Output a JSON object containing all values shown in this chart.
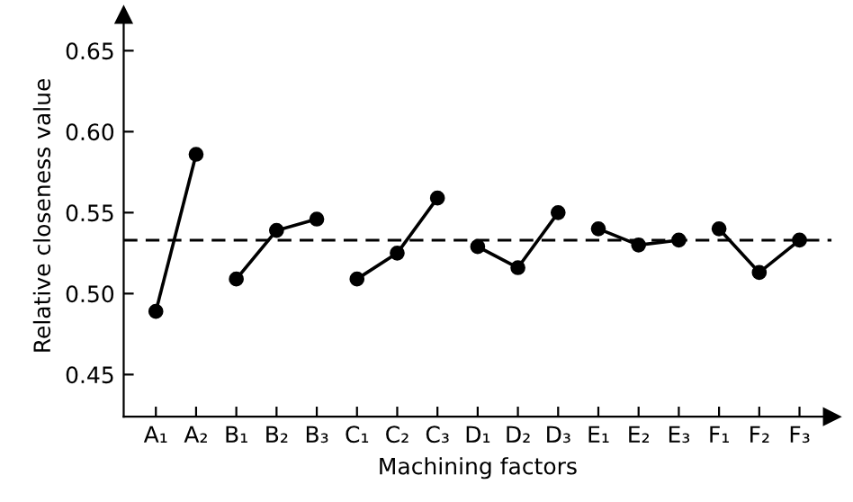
{
  "chart_data": {
    "type": "line",
    "xlabel": "Machining factors",
    "ylabel": "Relative closeness value",
    "categories": [
      "A₁",
      "A₂",
      "B₁",
      "B₂",
      "B₃",
      "C₁",
      "C₂",
      "C₃",
      "D₁",
      "D₂",
      "D₃",
      "E₁",
      "E₂",
      "E₃",
      "F₁",
      "F₂",
      "F₃"
    ],
    "series": [
      {
        "color": "#000000",
        "values": [
          0.489,
          0.586,
          null,
          null,
          null,
          null,
          null,
          null,
          null,
          null,
          null,
          null,
          null,
          null,
          null,
          null,
          null
        ]
      },
      {
        "color": "#000000",
        "values": [
          null,
          null,
          0.509,
          0.539,
          0.546,
          null,
          null,
          null,
          null,
          null,
          null,
          null,
          null,
          null,
          null,
          null,
          null
        ]
      },
      {
        "color": "#000000",
        "values": [
          null,
          null,
          null,
          null,
          null,
          0.509,
          0.525,
          0.559,
          null,
          null,
          null,
          null,
          null,
          null,
          null,
          null,
          null
        ]
      },
      {
        "color": "#000000",
        "values": [
          null,
          null,
          null,
          null,
          null,
          null,
          null,
          null,
          0.529,
          0.516,
          0.55,
          null,
          null,
          null,
          null,
          null,
          null
        ]
      },
      {
        "color": "#000000",
        "values": [
          null,
          null,
          null,
          null,
          null,
          null,
          null,
          null,
          null,
          null,
          null,
          0.54,
          0.53,
          0.533,
          null,
          null,
          null
        ]
      },
      {
        "color": "#000000",
        "values": [
          null,
          null,
          null,
          null,
          null,
          null,
          null,
          null,
          null,
          null,
          null,
          null,
          null,
          null,
          0.54,
          0.513,
          0.533
        ]
      }
    ],
    "ylim": [
      0.424,
      0.672
    ],
    "yticks": [
      0.45,
      {
        "value": 0.5,
        "label": "0.50"
      },
      0.55,
      {
        "value": 0.6,
        "label": "0.60"
      },
      0.65
    ],
    "ref_lines": [
      {
        "axis": "y",
        "value": 0.533,
        "line_style": "dashed",
        "color": "#000000"
      }
    ],
    "marker": "circle",
    "line_style": "solid",
    "grid": false,
    "legend": false
  }
}
